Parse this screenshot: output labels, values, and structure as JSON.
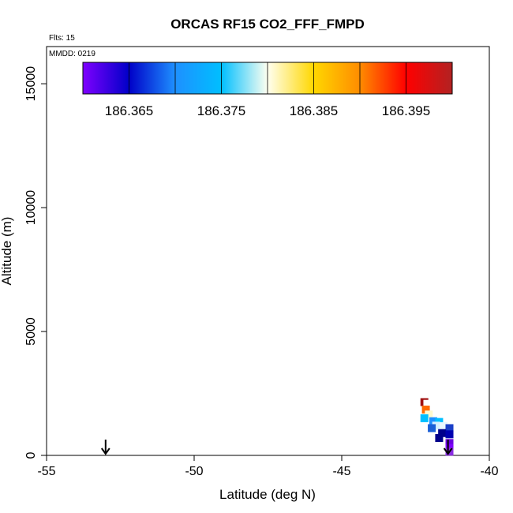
{
  "chart_data": {
    "type": "scatter",
    "title": "ORCAS RF15 CO2_FFF_FMPD",
    "xlabel": "Latitude (deg N)",
    "ylabel": "Altitude (m)",
    "xlim": [
      -55,
      -40
    ],
    "ylim": [
      0,
      16500
    ],
    "x_ticks": [
      -55,
      -50,
      -45,
      -40
    ],
    "y_ticks": [
      0,
      5000,
      10000,
      15000
    ],
    "x_tick_labels": [
      "-55",
      "-50",
      "-45",
      "-40"
    ],
    "y_tick_labels": [
      "0",
      "5000",
      "10000",
      "15000"
    ],
    "notes": {
      "flights": "Flts: 15",
      "date": "MMDD: 0219"
    },
    "colorbar": {
      "min": 186.36,
      "max": 186.4,
      "tick_values": [
        186.365,
        186.375,
        186.385,
        186.395
      ],
      "tick_labels": [
        "186.365",
        "186.375",
        "186.385",
        "186.395"
      ],
      "stops": [
        "#7f00ff",
        "#0000c8",
        "#1e90ff",
        "#00bfff",
        "#fffff0",
        "#ffd700",
        "#ff8c00",
        "#ff0000",
        "#b22222"
      ]
    },
    "markers": [
      {
        "name": "start-arrow",
        "x": -53.0
      },
      {
        "name": "end-arrow",
        "x": -41.4
      }
    ],
    "points": [
      {
        "x": -42.2,
        "y": 2150,
        "value": 186.4,
        "color": "#a01010"
      },
      {
        "x": -42.1,
        "y": 2080,
        "value": 186.385,
        "color": "#ffffff"
      },
      {
        "x": -42.15,
        "y": 1850,
        "value": 186.395,
        "color": "#ff6a00"
      },
      {
        "x": -42.05,
        "y": 1650,
        "value": 186.388,
        "color": "#fffacd"
      },
      {
        "x": -42.2,
        "y": 1500,
        "value": 186.378,
        "color": "#00bfff"
      },
      {
        "x": -41.9,
        "y": 1380,
        "value": 186.375,
        "color": "#1e90ff"
      },
      {
        "x": -41.7,
        "y": 1350,
        "value": 186.375,
        "color": "#00bfff"
      },
      {
        "x": -41.8,
        "y": 1200,
        "value": 186.383,
        "color": "#d6f0ff"
      },
      {
        "x": -41.55,
        "y": 1180,
        "value": 186.385,
        "color": "#eaf8ff"
      },
      {
        "x": -41.95,
        "y": 1100,
        "value": 186.37,
        "color": "#1a5fd6"
      },
      {
        "x": -41.35,
        "y": 1100,
        "value": 186.368,
        "color": "#1a3fc8"
      },
      {
        "x": -41.6,
        "y": 900,
        "value": 186.363,
        "color": "#00008b"
      },
      {
        "x": -41.35,
        "y": 850,
        "value": 186.362,
        "color": "#0000b0"
      },
      {
        "x": -41.7,
        "y": 700,
        "value": 186.362,
        "color": "#00008b"
      },
      {
        "x": -41.35,
        "y": 500,
        "value": 186.36,
        "color": "#6a00e0"
      },
      {
        "x": -41.35,
        "y": 300,
        "value": 186.36,
        "color": "#7f00ff"
      },
      {
        "x": -41.35,
        "y": 150,
        "value": 186.36,
        "color": "#8a2be2"
      }
    ]
  }
}
